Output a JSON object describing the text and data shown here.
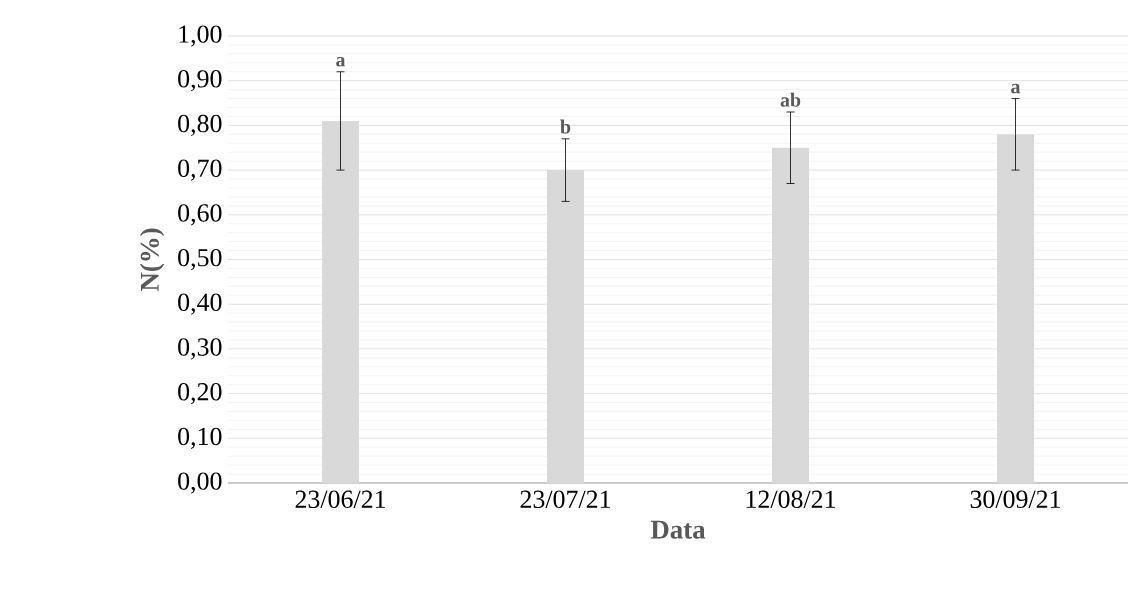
{
  "chart_data": {
    "type": "bar",
    "xlabel": "Data",
    "ylabel": "N(%)",
    "categories": [
      "23/06/21",
      "23/07/21",
      "12/08/21",
      "30/09/21"
    ],
    "values": [
      0.81,
      0.7,
      0.75,
      0.78
    ],
    "errors": [
      0.11,
      0.07,
      0.08,
      0.08
    ],
    "color": "#d9d9d9",
    "ylim": [
      0,
      1
    ],
    "yticks": [
      {
        "value": 0,
        "label": "0,00"
      },
      {
        "value": 0.1,
        "label": "0,10"
      },
      {
        "value": 0.2,
        "label": "0,20"
      },
      {
        "value": 0.3,
        "label": "0,30"
      },
      {
        "value": 0.4,
        "label": "0,40"
      },
      {
        "value": 0.5,
        "label": "0,50"
      },
      {
        "value": 0.6,
        "label": "0,60"
      },
      {
        "value": 0.7,
        "label": "0,70"
      },
      {
        "value": 0.8,
        "label": "0,80"
      },
      {
        "value": 0.9,
        "label": "0,90"
      },
      {
        "value": 1,
        "label": "1,00"
      }
    ],
    "grid": "y",
    "annotations": [
      "a",
      "b",
      "ab",
      "a"
    ]
  }
}
